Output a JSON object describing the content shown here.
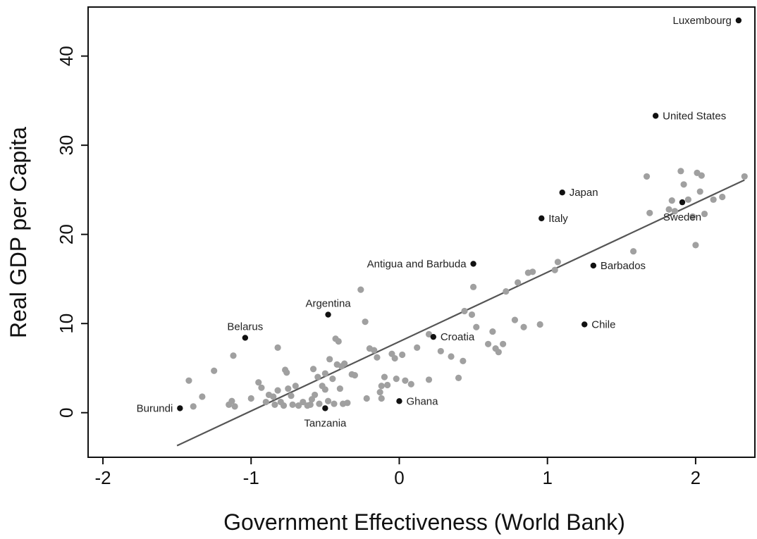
{
  "chart_data": {
    "type": "scatter",
    "title": "",
    "xlabel": "Government Effectiveness (World Bank)",
    "ylabel": "Real GDP per Capita",
    "xlim": [
      -2.1,
      2.4
    ],
    "ylim": [
      -5,
      45.5
    ],
    "xticks": [
      -2,
      -1,
      0,
      1,
      2
    ],
    "yticks": [
      0,
      10,
      20,
      30,
      40
    ],
    "grid": false,
    "legend": "none",
    "colors": {
      "labeled": "#111111",
      "other": "#a0a0a0",
      "fit": "#555555"
    },
    "fit_line": {
      "x": [
        -1.5,
        2.33
      ],
      "y": [
        -3.7,
        26.1
      ]
    },
    "labeled_points": [
      {
        "name": "Luxembourg",
        "x": 2.29,
        "y": 44.0,
        "pos": "left"
      },
      {
        "name": "United States",
        "x": 1.73,
        "y": 33.3,
        "pos": "right"
      },
      {
        "name": "Japan",
        "x": 1.1,
        "y": 24.7,
        "pos": "right"
      },
      {
        "name": "Sweden",
        "x": 1.91,
        "y": 23.6,
        "pos": "below"
      },
      {
        "name": "Italy",
        "x": 0.96,
        "y": 21.8,
        "pos": "right"
      },
      {
        "name": "Antigua and Barbuda",
        "x": 0.5,
        "y": 16.7,
        "pos": "left"
      },
      {
        "name": "Barbados",
        "x": 1.31,
        "y": 16.5,
        "pos": "right"
      },
      {
        "name": "Argentina",
        "x": -0.48,
        "y": 11.0,
        "pos": "above"
      },
      {
        "name": "Chile",
        "x": 1.25,
        "y": 9.9,
        "pos": "right"
      },
      {
        "name": "Belarus",
        "x": -1.04,
        "y": 8.4,
        "pos": "above"
      },
      {
        "name": "Croatia",
        "x": 0.23,
        "y": 8.5,
        "pos": "right"
      },
      {
        "name": "Ghana",
        "x": 0.0,
        "y": 1.3,
        "pos": "right"
      },
      {
        "name": "Burundi",
        "x": -1.48,
        "y": 0.5,
        "pos": "left"
      },
      {
        "name": "Tanzania",
        "x": -0.5,
        "y": 0.5,
        "pos": "below"
      }
    ],
    "other_points": [
      [
        -1.42,
        3.6
      ],
      [
        -1.39,
        0.7
      ],
      [
        -1.33,
        1.8
      ],
      [
        -1.25,
        4.7
      ],
      [
        -1.15,
        0.9
      ],
      [
        -1.13,
        1.3
      ],
      [
        -1.12,
        6.4
      ],
      [
        -1.11,
        0.7
      ],
      [
        -1.0,
        1.6
      ],
      [
        -0.95,
        3.4
      ],
      [
        -0.93,
        2.8
      ],
      [
        -0.9,
        1.2
      ],
      [
        -0.88,
        2.0
      ],
      [
        -0.85,
        1.8
      ],
      [
        -0.84,
        0.9
      ],
      [
        -0.82,
        7.3
      ],
      [
        -0.82,
        2.5
      ],
      [
        -0.8,
        1.2
      ],
      [
        -0.78,
        0.8
      ],
      [
        -0.77,
        4.8
      ],
      [
        -0.76,
        4.5
      ],
      [
        -0.75,
        2.7
      ],
      [
        -0.73,
        1.9
      ],
      [
        -0.72,
        0.9
      ],
      [
        -0.7,
        3.0
      ],
      [
        -0.68,
        0.8
      ],
      [
        -0.65,
        1.2
      ],
      [
        -0.62,
        0.8
      ],
      [
        -0.6,
        0.9
      ],
      [
        -0.59,
        1.5
      ],
      [
        -0.58,
        4.9
      ],
      [
        -0.57,
        2.0
      ],
      [
        -0.55,
        4.0
      ],
      [
        -0.54,
        1.0
      ],
      [
        -0.52,
        3.0
      ],
      [
        -0.5,
        2.6
      ],
      [
        -0.5,
        4.4
      ],
      [
        -0.48,
        1.3
      ],
      [
        -0.47,
        6.0
      ],
      [
        -0.45,
        3.8
      ],
      [
        -0.44,
        1.0
      ],
      [
        -0.43,
        8.3
      ],
      [
        -0.42,
        5.4
      ],
      [
        -0.41,
        8.0
      ],
      [
        -0.4,
        2.7
      ],
      [
        -0.39,
        5.2
      ],
      [
        -0.38,
        1.0
      ],
      [
        -0.37,
        5.5
      ],
      [
        -0.35,
        1.1
      ],
      [
        -0.32,
        4.3
      ],
      [
        -0.3,
        4.2
      ],
      [
        -0.26,
        13.8
      ],
      [
        -0.23,
        10.2
      ],
      [
        -0.22,
        1.6
      ],
      [
        -0.2,
        7.2
      ],
      [
        -0.17,
        7.0
      ],
      [
        -0.15,
        6.2
      ],
      [
        -0.13,
        2.3
      ],
      [
        -0.12,
        3.0
      ],
      [
        -0.12,
        1.6
      ],
      [
        -0.1,
        4.0
      ],
      [
        -0.08,
        3.1
      ],
      [
        -0.05,
        6.6
      ],
      [
        -0.03,
        6.1
      ],
      [
        -0.02,
        3.8
      ],
      [
        0.02,
        6.5
      ],
      [
        0.04,
        3.6
      ],
      [
        0.08,
        3.2
      ],
      [
        0.12,
        7.3
      ],
      [
        0.2,
        3.7
      ],
      [
        0.2,
        8.8
      ],
      [
        0.28,
        6.9
      ],
      [
        0.35,
        6.3
      ],
      [
        0.4,
        3.9
      ],
      [
        0.43,
        5.8
      ],
      [
        0.44,
        11.4
      ],
      [
        0.49,
        11.0
      ],
      [
        0.5,
        14.1
      ],
      [
        0.52,
        9.6
      ],
      [
        0.6,
        7.7
      ],
      [
        0.63,
        9.1
      ],
      [
        0.65,
        7.2
      ],
      [
        0.67,
        6.8
      ],
      [
        0.7,
        7.7
      ],
      [
        0.72,
        13.6
      ],
      [
        0.78,
        10.4
      ],
      [
        0.8,
        14.6
      ],
      [
        0.84,
        9.6
      ],
      [
        0.87,
        15.7
      ],
      [
        0.9,
        15.8
      ],
      [
        0.95,
        9.9
      ],
      [
        1.05,
        16.0
      ],
      [
        1.07,
        16.9
      ],
      [
        1.58,
        18.1
      ],
      [
        1.67,
        26.5
      ],
      [
        1.69,
        22.4
      ],
      [
        1.82,
        22.8
      ],
      [
        1.84,
        23.8
      ],
      [
        1.86,
        22.6
      ],
      [
        1.9,
        27.1
      ],
      [
        1.92,
        25.6
      ],
      [
        1.95,
        23.9
      ],
      [
        1.98,
        22.0
      ],
      [
        2.0,
        18.8
      ],
      [
        2.01,
        26.9
      ],
      [
        2.03,
        24.8
      ],
      [
        2.04,
        26.6
      ],
      [
        2.06,
        22.3
      ],
      [
        2.12,
        23.9
      ],
      [
        2.18,
        24.2
      ],
      [
        2.33,
        26.5
      ]
    ]
  }
}
